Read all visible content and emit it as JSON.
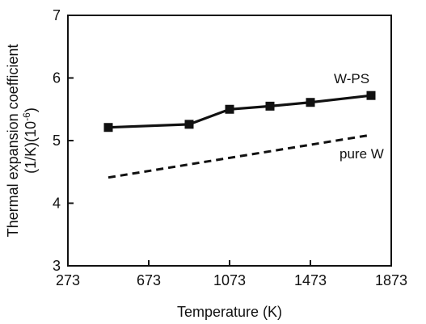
{
  "chart_data": {
    "type": "line",
    "xlabel": "Temperature (K)",
    "ylabel_line1": "Thermal expansion coefficient",
    "ylabel_line2_prefix": "(1/K)(10",
    "ylabel_line2_exp": "-6",
    "ylabel_line2_suffix": ")",
    "xlim": [
      273,
      1873
    ],
    "ylim": [
      3,
      7
    ],
    "xticks": [
      273,
      673,
      1073,
      1473,
      1873
    ],
    "yticks": [
      3,
      4,
      5,
      6,
      7
    ],
    "xtick_labels": [
      "273",
      "673",
      "1073",
      "1473",
      "1873"
    ],
    "ytick_labels": [
      "3",
      "4",
      "5",
      "6",
      "7"
    ],
    "series": [
      {
        "name": "W-PS",
        "style": "solid",
        "marker": "square",
        "color": "#111111",
        "x": [
          473,
          873,
          1073,
          1273,
          1473,
          1773
        ],
        "y": [
          5.21,
          5.26,
          5.5,
          5.55,
          5.61,
          5.72
        ]
      },
      {
        "name": "pure W",
        "style": "dashed",
        "marker": "none",
        "color": "#111111",
        "x": [
          473,
          1773
        ],
        "y": [
          4.41,
          5.09
        ]
      }
    ]
  }
}
